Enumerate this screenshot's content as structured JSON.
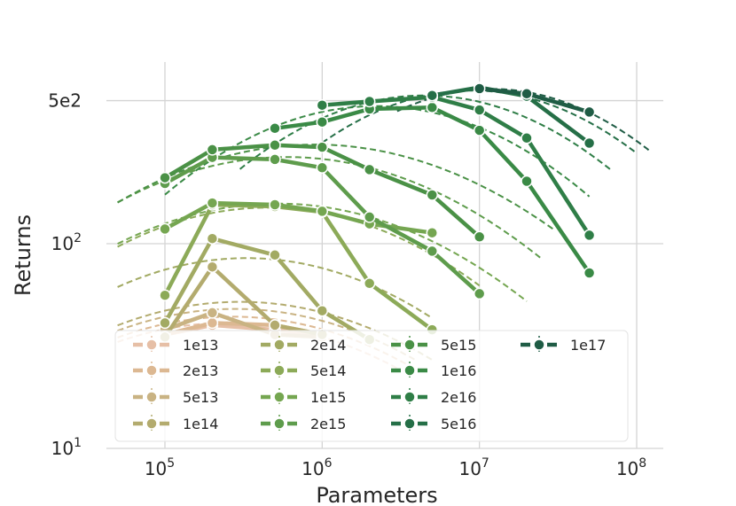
{
  "chart_data": {
    "type": "line",
    "xlabel": "Parameters",
    "ylabel": "Returns",
    "xscale": "log",
    "yscale": "log",
    "xlim": [
      50000,
      120000000
    ],
    "ylim": [
      10,
      800
    ],
    "grid": true,
    "xticks": [
      {
        "value": 100000,
        "base": "10",
        "exp": "5"
      },
      {
        "value": 1000000,
        "base": "10",
        "exp": "6"
      },
      {
        "value": 10000000,
        "base": "10",
        "exp": "7"
      },
      {
        "value": 100000000,
        "base": "10",
        "exp": "8"
      }
    ],
    "yticks": [
      {
        "value": 10,
        "base": "10",
        "exp": "1"
      },
      {
        "value": 100,
        "base": "10",
        "exp": "2"
      },
      {
        "value": 500,
        "text": "5e2"
      }
    ],
    "legend_position": "lower-left",
    "series": [
      {
        "name": "1e13",
        "color": "#e6bfa6",
        "x": [
          100000,
          200000,
          500000,
          1000000
        ],
        "y": [
          36,
          40,
          38,
          36
        ],
        "fit_x": [
          50000,
          3000000
        ],
        "fit_peak_x": 250000,
        "fit_peak_y": 41,
        "fit_k": 0.19
      },
      {
        "name": "2e13",
        "color": "#dcb892",
        "x": [
          100000,
          200000,
          500000,
          1000000
        ],
        "y": [
          36,
          41,
          40,
          36
        ],
        "fit_x": [
          50000,
          3500000
        ],
        "fit_peak_x": 270000,
        "fit_peak_y": 44,
        "fit_k": 0.19
      },
      {
        "name": "5e13",
        "color": "#c9b383",
        "x": [
          100000,
          200000,
          500000,
          1000000
        ],
        "y": [
          38,
          46,
          36,
          35
        ],
        "fit_x": [
          50000,
          4000000
        ],
        "fit_peak_x": 280000,
        "fit_peak_y": 48,
        "fit_k": 0.19
      },
      {
        "name": "1e14",
        "color": "#b3ab6e",
        "x": [
          100000,
          200000,
          500000,
          1000000
        ],
        "y": [
          35,
          77,
          40,
          36
        ],
        "fit_x": [
          50000,
          5000000
        ],
        "fit_peak_x": 300000,
        "fit_peak_y": 52,
        "fit_k": 0.19
      },
      {
        "name": "2e14",
        "color": "#a2aa63",
        "x": [
          100000,
          200000,
          500000,
          1000000,
          2000000
        ],
        "y": [
          41,
          106,
          88,
          47,
          34
        ],
        "fit_x": [
          50000,
          5000000
        ],
        "fit_peak_x": 330000,
        "fit_peak_y": 85,
        "fit_k": 0.21
      },
      {
        "name": "5e14",
        "color": "#8caa58",
        "x": [
          100000,
          200000,
          500000,
          1000000,
          2000000,
          5000000
        ],
        "y": [
          56,
          155,
          152,
          143,
          64,
          38
        ],
        "fit_x": [
          50000,
          10000000
        ],
        "fit_peak_x": 450000,
        "fit_peak_y": 150,
        "fit_k": 0.21
      },
      {
        "name": "1e15",
        "color": "#75a651",
        "x": [
          100000,
          200000,
          500000,
          1000000,
          2000000,
          5000000
        ],
        "y": [
          118,
          158,
          155,
          144,
          125,
          113
        ],
        "fit_x": [
          50000,
          20000000
        ],
        "fit_peak_x": 520000,
        "fit_peak_y": 157,
        "fit_k": 0.19
      },
      {
        "name": "2e15",
        "color": "#5e9c4c",
        "x": [
          100000,
          200000,
          500000,
          1000000,
          2000000,
          5000000,
          10000000
        ],
        "y": [
          197,
          264,
          258,
          235,
          135,
          92,
          57
        ],
        "fit_x": [
          50000,
          25000000
        ],
        "fit_peak_x": 600000,
        "fit_peak_y": 265,
        "fit_k": 0.19
      },
      {
        "name": "5e15",
        "color": "#4a9146",
        "x": [
          100000,
          200000,
          500000,
          1000000,
          2000000,
          5000000,
          10000000
        ],
        "y": [
          210,
          288,
          303,
          296,
          230,
          173,
          108
        ],
        "fit_x": [
          50000,
          30000000
        ],
        "fit_peak_x": 900000,
        "fit_peak_y": 305,
        "fit_k": 0.18
      },
      {
        "name": "1e16",
        "color": "#3a8a46",
        "x": [
          500000,
          1000000,
          2000000,
          5000000,
          10000000,
          20000000,
          50000000
        ],
        "y": [
          366,
          393,
          455,
          463,
          358,
          202,
          72
        ],
        "fit_x": [
          100000,
          50000000
        ],
        "fit_peak_x": 2200000,
        "fit_peak_y": 470,
        "fit_k": 0.24
      },
      {
        "name": "2e16",
        "color": "#2f7e47",
        "x": [
          1000000,
          2000000,
          5000000,
          10000000,
          20000000,
          50000000
        ],
        "y": [
          475,
          495,
          520,
          450,
          328,
          110
        ],
        "fit_x": [
          300000,
          70000000
        ],
        "fit_peak_x": 4500000,
        "fit_peak_y": 530,
        "fit_k": 0.26
      },
      {
        "name": "5e16",
        "color": "#256f47",
        "x": [
          5000000,
          10000000,
          20000000,
          50000000
        ],
        "y": [
          530,
          580,
          525,
          310
        ],
        "fit_x": [
          1000000,
          100000000
        ],
        "fit_peak_x": 9000000,
        "fit_peak_y": 560,
        "fit_k": 0.28
      },
      {
        "name": "1e17",
        "color": "#1f5c45",
        "x": [
          10000000,
          20000000,
          50000000
        ],
        "y": [
          572,
          540,
          440
        ],
        "fit_x": [
          3000000,
          120000000
        ],
        "fit_peak_x": 12000000,
        "fit_peak_y": 570,
        "fit_k": 0.3
      }
    ]
  }
}
